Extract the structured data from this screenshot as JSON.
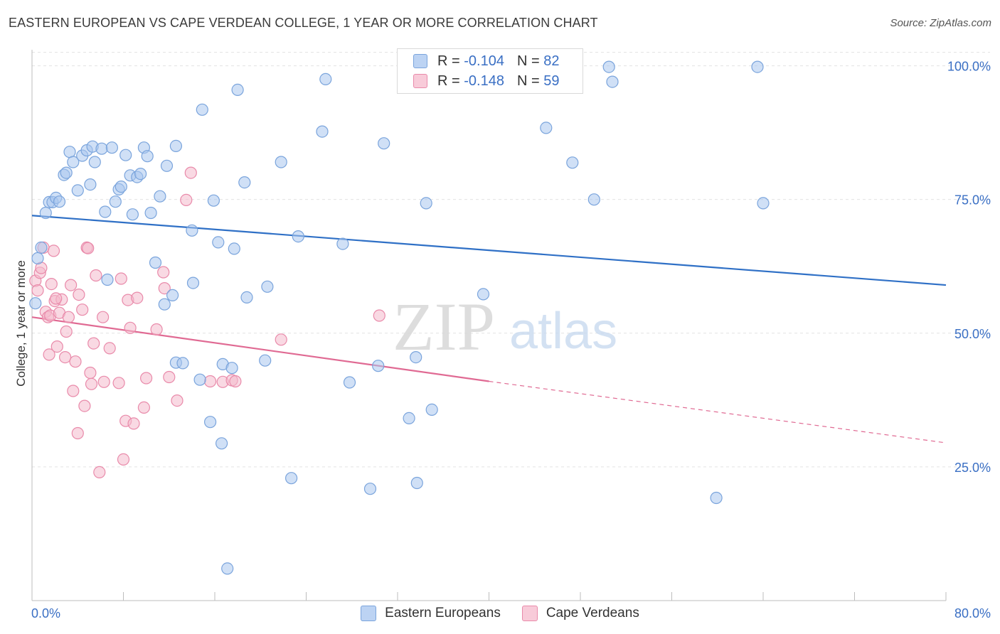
{
  "header": {
    "title": "EASTERN EUROPEAN VS CAPE VERDEAN COLLEGE, 1 YEAR OR MORE CORRELATION CHART",
    "source": "Source: ZipAtlas.com"
  },
  "watermark": {
    "zip": "ZIP",
    "atlas": "atlas"
  },
  "legend_top": {
    "rows": [
      {
        "r_label": "R =",
        "r_value": "-0.104",
        "n_label": "N =",
        "n_value": "82"
      },
      {
        "r_label": "R =",
        "r_value": "-0.148",
        "n_label": "N =",
        "n_value": "59"
      }
    ]
  },
  "legend_bottom": [
    "Eastern Europeans",
    "Cape Verdeans"
  ],
  "chart_data": {
    "type": "scatter",
    "title": "EASTERN EUROPEAN VS CAPE VERDEAN COLLEGE, 1 YEAR OR MORE CORRELATION CHART",
    "xlabel": "",
    "ylabel": "College, 1 year or more",
    "xlim": [
      0,
      80
    ],
    "ylim": [
      0,
      103
    ],
    "x_tick_labels": [
      "0.0%",
      "80.0%"
    ],
    "y_ticks": [
      25,
      50,
      75,
      100
    ],
    "y_tick_labels": [
      "25.0%",
      "50.0%",
      "75.0%",
      "100.0%"
    ],
    "grid": true,
    "legend_position": "top-center",
    "colors": {
      "Eastern Europeans": "#a9c6ee",
      "Eastern Europeans_edge": "#7aa4dc",
      "Eastern Europeans_line": "#2f70c6",
      "Cape Verdeans": "#f4b9cc",
      "Cape Verdeans_edge": "#e98aaa",
      "Cape Verdeans_line": "#e06a93",
      "axis_label": "#3a6fc4"
    },
    "series": [
      {
        "name": "Eastern Europeans",
        "R": -0.104,
        "N": 82,
        "trend": {
          "x": [
            0,
            80
          ],
          "y": [
            72,
            59
          ]
        },
        "points": [
          [
            0.3,
            55.6
          ],
          [
            0.5,
            64.0
          ],
          [
            0.8,
            66.0
          ],
          [
            1.2,
            72.5
          ],
          [
            1.5,
            74.5
          ],
          [
            1.8,
            74.5
          ],
          [
            2.1,
            75.3
          ],
          [
            2.4,
            74.6
          ],
          [
            2.8,
            79.6
          ],
          [
            3.0,
            80.0
          ],
          [
            3.3,
            83.9
          ],
          [
            3.6,
            82.0
          ],
          [
            4.0,
            76.7
          ],
          [
            4.4,
            83.2
          ],
          [
            4.8,
            84.2
          ],
          [
            5.1,
            77.8
          ],
          [
            5.3,
            84.9
          ],
          [
            5.5,
            82.0
          ],
          [
            6.1,
            84.5
          ],
          [
            6.4,
            72.7
          ],
          [
            6.6,
            60.0
          ],
          [
            7.0,
            84.7
          ],
          [
            7.3,
            74.6
          ],
          [
            7.6,
            76.9
          ],
          [
            7.8,
            77.4
          ],
          [
            8.2,
            83.3
          ],
          [
            8.6,
            79.5
          ],
          [
            8.8,
            72.2
          ],
          [
            9.2,
            79.2
          ],
          [
            9.5,
            79.8
          ],
          [
            9.8,
            84.7
          ],
          [
            10.1,
            83.1
          ],
          [
            10.4,
            72.5
          ],
          [
            10.8,
            63.2
          ],
          [
            11.2,
            75.6
          ],
          [
            11.6,
            55.4
          ],
          [
            11.8,
            81.3
          ],
          [
            12.3,
            57.1
          ],
          [
            12.6,
            85.0
          ],
          [
            12.6,
            44.5
          ],
          [
            13.2,
            44.4
          ],
          [
            14.0,
            69.2
          ],
          [
            14.1,
            59.4
          ],
          [
            14.7,
            41.3
          ],
          [
            14.9,
            91.8
          ],
          [
            15.6,
            33.4
          ],
          [
            15.9,
            74.8
          ],
          [
            16.3,
            67.0
          ],
          [
            16.6,
            29.4
          ],
          [
            16.7,
            44.2
          ],
          [
            17.1,
            6.0
          ],
          [
            17.5,
            43.5
          ],
          [
            17.7,
            65.8
          ],
          [
            18.0,
            95.5
          ],
          [
            18.6,
            78.2
          ],
          [
            18.8,
            56.7
          ],
          [
            20.4,
            44.9
          ],
          [
            20.6,
            58.7
          ],
          [
            21.8,
            82.0
          ],
          [
            22.7,
            22.9
          ],
          [
            23.3,
            68.1
          ],
          [
            25.4,
            87.7
          ],
          [
            25.7,
            97.5
          ],
          [
            27.2,
            66.7
          ],
          [
            27.8,
            40.8
          ],
          [
            29.6,
            20.9
          ],
          [
            30.3,
            43.9
          ],
          [
            30.8,
            85.5
          ],
          [
            33.0,
            34.1
          ],
          [
            33.6,
            45.5
          ],
          [
            33.7,
            22.0
          ],
          [
            34.5,
            74.3
          ],
          [
            35.0,
            35.7
          ],
          [
            39.5,
            57.3
          ],
          [
            45.0,
            88.4
          ],
          [
            47.3,
            81.9
          ],
          [
            49.2,
            75.0
          ],
          [
            50.5,
            99.8
          ],
          [
            50.8,
            97.0
          ],
          [
            59.9,
            19.2
          ],
          [
            63.5,
            99.8
          ],
          [
            64.0,
            74.3
          ]
        ]
      },
      {
        "name": "Cape Verdeans",
        "R": -0.148,
        "N": 59,
        "trend": {
          "x": [
            0,
            40
          ],
          "y": [
            53,
            41
          ]
        },
        "trend_dashed": {
          "x": [
            40,
            80
          ],
          "y": [
            41,
            29.5
          ]
        },
        "points": [
          [
            0.3,
            59.8
          ],
          [
            0.5,
            58.0
          ],
          [
            0.7,
            61.3
          ],
          [
            0.8,
            62.2
          ],
          [
            1.0,
            66.0
          ],
          [
            1.2,
            54.0
          ],
          [
            1.4,
            53.0
          ],
          [
            1.5,
            46.0
          ],
          [
            1.6,
            53.3
          ],
          [
            1.7,
            59.2
          ],
          [
            1.9,
            65.4
          ],
          [
            2.0,
            56.0
          ],
          [
            2.2,
            47.5
          ],
          [
            2.4,
            53.8
          ],
          [
            2.6,
            56.3
          ],
          [
            2.9,
            45.5
          ],
          [
            3.0,
            50.3
          ],
          [
            3.2,
            53.0
          ],
          [
            3.4,
            59.0
          ],
          [
            3.6,
            39.2
          ],
          [
            3.8,
            44.7
          ],
          [
            4.0,
            31.3
          ],
          [
            4.1,
            57.2
          ],
          [
            4.4,
            54.4
          ],
          [
            4.6,
            36.4
          ],
          [
            4.8,
            66.0
          ],
          [
            4.9,
            65.9
          ],
          [
            5.1,
            42.6
          ],
          [
            5.2,
            40.5
          ],
          [
            5.4,
            48.1
          ],
          [
            5.6,
            60.8
          ],
          [
            5.9,
            24.0
          ],
          [
            6.2,
            53.0
          ],
          [
            6.3,
            40.9
          ],
          [
            6.8,
            47.2
          ],
          [
            7.6,
            40.7
          ],
          [
            7.8,
            60.2
          ],
          [
            8.0,
            26.4
          ],
          [
            8.2,
            33.6
          ],
          [
            8.4,
            56.2
          ],
          [
            8.6,
            51.0
          ],
          [
            8.9,
            33.1
          ],
          [
            9.2,
            56.6
          ],
          [
            9.8,
            36.1
          ],
          [
            10.0,
            41.6
          ],
          [
            10.9,
            50.7
          ],
          [
            11.5,
            61.4
          ],
          [
            11.6,
            58.4
          ],
          [
            12.0,
            41.8
          ],
          [
            12.7,
            37.4
          ],
          [
            13.5,
            74.9
          ],
          [
            13.9,
            80.0
          ],
          [
            15.6,
            41.0
          ],
          [
            16.7,
            40.9
          ],
          [
            17.5,
            41.2
          ],
          [
            17.8,
            41.0
          ],
          [
            21.8,
            48.8
          ],
          [
            30.4,
            53.3
          ],
          [
            2.1,
            56.5
          ]
        ]
      }
    ]
  }
}
